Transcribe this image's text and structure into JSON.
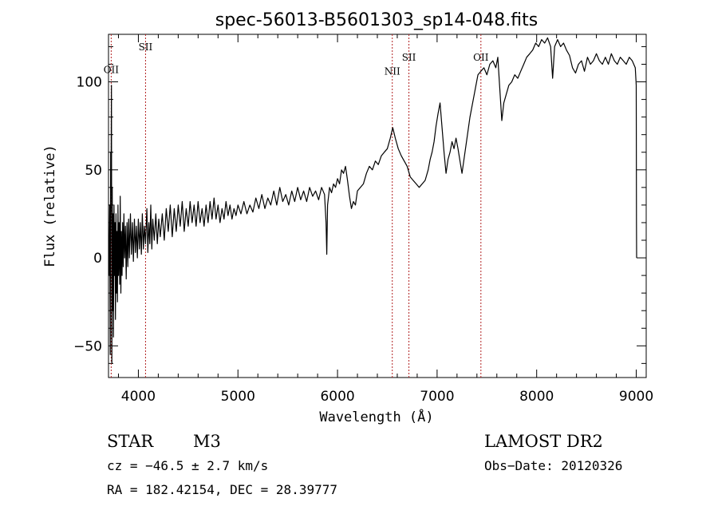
{
  "chart_data": {
    "type": "line",
    "title": "spec-56013-B5601303_sp14-048.fits",
    "xlabel": "Wavelength (Å)",
    "ylabel": "Flux (relative)",
    "xlim": [
      3700,
      9100
    ],
    "ylim": [
      -68,
      127
    ],
    "x_ticks": [
      4000,
      5000,
      6000,
      7000,
      8000,
      9000
    ],
    "y_ticks": [
      -50,
      0,
      50,
      100
    ],
    "grid": false,
    "line_color": "#000000",
    "marker_color": "#b22222",
    "lines": [
      {
        "label": "OII",
        "x": 3727,
        "label_y": 105
      },
      {
        "label": "SII",
        "x": 4072,
        "label_y": 118
      },
      {
        "label": "NII",
        "x": 6550,
        "label_y": 104
      },
      {
        "label": "SII",
        "x": 6717,
        "label_y": 112
      },
      {
        "label": "OII",
        "x": 7440,
        "label_y": 112
      }
    ],
    "series": [
      {
        "values": [
          [
            3705,
            -10
          ],
          [
            3712,
            30
          ],
          [
            3718,
            -55
          ],
          [
            3722,
            60
          ],
          [
            3726,
            40
          ],
          [
            3730,
            98
          ],
          [
            3734,
            -60
          ],
          [
            3738,
            40
          ],
          [
            3742,
            -30
          ],
          [
            3746,
            25
          ],
          [
            3750,
            -45
          ],
          [
            3755,
            30
          ],
          [
            3760,
            -10
          ],
          [
            3765,
            20
          ],
          [
            3770,
            -35
          ],
          [
            3775,
            25
          ],
          [
            3780,
            -20
          ],
          [
            3785,
            15
          ],
          [
            3790,
            -25
          ],
          [
            3795,
            30
          ],
          [
            3800,
            -10
          ],
          [
            3806,
            20
          ],
          [
            3812,
            -15
          ],
          [
            3818,
            35
          ],
          [
            3824,
            -20
          ],
          [
            3830,
            15
          ],
          [
            3836,
            -10
          ],
          [
            3842,
            20
          ],
          [
            3848,
            -5
          ],
          [
            3855,
            25
          ],
          [
            3862,
            0
          ],
          [
            3870,
            18
          ],
          [
            3878,
            -12
          ],
          [
            3886,
            20
          ],
          [
            3894,
            -5
          ],
          [
            3902,
            22
          ],
          [
            3910,
            0
          ],
          [
            3920,
            25
          ],
          [
            3930,
            2
          ],
          [
            3940,
            20
          ],
          [
            3950,
            -2
          ],
          [
            3960,
            22
          ],
          [
            3970,
            3
          ],
          [
            3980,
            18
          ],
          [
            3990,
            0
          ],
          [
            4000,
            22
          ],
          [
            4010,
            5
          ],
          [
            4020,
            20
          ],
          [
            4030,
            2
          ],
          [
            4040,
            25
          ],
          [
            4050,
            5
          ],
          [
            4060,
            18
          ],
          [
            4072,
            8
          ],
          [
            4085,
            28
          ],
          [
            4095,
            3
          ],
          [
            4105,
            20
          ],
          [
            4115,
            8
          ],
          [
            4125,
            30
          ],
          [
            4135,
            5
          ],
          [
            4145,
            22
          ],
          [
            4160,
            10
          ],
          [
            4175,
            25
          ],
          [
            4190,
            8
          ],
          [
            4205,
            22
          ],
          [
            4220,
            12
          ],
          [
            4240,
            25
          ],
          [
            4260,
            10
          ],
          [
            4280,
            28
          ],
          [
            4300,
            15
          ],
          [
            4320,
            30
          ],
          [
            4340,
            12
          ],
          [
            4360,
            28
          ],
          [
            4380,
            15
          ],
          [
            4400,
            30
          ],
          [
            4420,
            18
          ],
          [
            4440,
            32
          ],
          [
            4460,
            15
          ],
          [
            4480,
            28
          ],
          [
            4500,
            18
          ],
          [
            4520,
            32
          ],
          [
            4540,
            20
          ],
          [
            4560,
            30
          ],
          [
            4580,
            18
          ],
          [
            4600,
            32
          ],
          [
            4620,
            20
          ],
          [
            4640,
            28
          ],
          [
            4660,
            18
          ],
          [
            4680,
            30
          ],
          [
            4700,
            20
          ],
          [
            4720,
            32
          ],
          [
            4740,
            22
          ],
          [
            4760,
            34
          ],
          [
            4780,
            22
          ],
          [
            4800,
            30
          ],
          [
            4820,
            20
          ],
          [
            4840,
            28
          ],
          [
            4860,
            22
          ],
          [
            4880,
            32
          ],
          [
            4900,
            24
          ],
          [
            4920,
            30
          ],
          [
            4940,
            22
          ],
          [
            4960,
            28
          ],
          [
            4980,
            24
          ],
          [
            5000,
            30
          ],
          [
            5030,
            25
          ],
          [
            5060,
            32
          ],
          [
            5090,
            25
          ],
          [
            5120,
            30
          ],
          [
            5150,
            26
          ],
          [
            5180,
            34
          ],
          [
            5210,
            28
          ],
          [
            5240,
            36
          ],
          [
            5270,
            28
          ],
          [
            5300,
            34
          ],
          [
            5330,
            30
          ],
          [
            5360,
            38
          ],
          [
            5390,
            30
          ],
          [
            5420,
            40
          ],
          [
            5450,
            32
          ],
          [
            5480,
            36
          ],
          [
            5510,
            30
          ],
          [
            5540,
            38
          ],
          [
            5570,
            32
          ],
          [
            5600,
            40
          ],
          [
            5630,
            33
          ],
          [
            5660,
            38
          ],
          [
            5690,
            32
          ],
          [
            5720,
            40
          ],
          [
            5750,
            35
          ],
          [
            5780,
            38
          ],
          [
            5810,
            33
          ],
          [
            5840,
            40
          ],
          [
            5870,
            36
          ],
          [
            5885,
            20
          ],
          [
            5892,
            2
          ],
          [
            5900,
            30
          ],
          [
            5920,
            40
          ],
          [
            5940,
            37
          ],
          [
            5960,
            42
          ],
          [
            5980,
            40
          ],
          [
            6000,
            45
          ],
          [
            6020,
            42
          ],
          [
            6040,
            50
          ],
          [
            6060,
            48
          ],
          [
            6080,
            52
          ],
          [
            6100,
            44
          ],
          [
            6120,
            35
          ],
          [
            6140,
            28
          ],
          [
            6160,
            32
          ],
          [
            6180,
            30
          ],
          [
            6200,
            38
          ],
          [
            6230,
            40
          ],
          [
            6260,
            42
          ],
          [
            6290,
            48
          ],
          [
            6320,
            52
          ],
          [
            6350,
            50
          ],
          [
            6380,
            55
          ],
          [
            6410,
            53
          ],
          [
            6440,
            58
          ],
          [
            6470,
            60
          ],
          [
            6500,
            62
          ],
          [
            6530,
            68
          ],
          [
            6555,
            74
          ],
          [
            6580,
            68
          ],
          [
            6610,
            62
          ],
          [
            6640,
            58
          ],
          [
            6670,
            55
          ],
          [
            6700,
            52
          ],
          [
            6730,
            46
          ],
          [
            6760,
            44
          ],
          [
            6790,
            42
          ],
          [
            6820,
            40
          ],
          [
            6850,
            42
          ],
          [
            6880,
            44
          ],
          [
            6910,
            50
          ],
          [
            6930,
            56
          ],
          [
            6950,
            60
          ],
          [
            6970,
            66
          ],
          [
            6990,
            75
          ],
          [
            7010,
            82
          ],
          [
            7030,
            88
          ],
          [
            7050,
            74
          ],
          [
            7070,
            60
          ],
          [
            7090,
            48
          ],
          [
            7110,
            56
          ],
          [
            7130,
            60
          ],
          [
            7150,
            66
          ],
          [
            7170,
            62
          ],
          [
            7190,
            68
          ],
          [
            7210,
            62
          ],
          [
            7230,
            55
          ],
          [
            7250,
            48
          ],
          [
            7270,
            56
          ],
          [
            7290,
            64
          ],
          [
            7310,
            72
          ],
          [
            7330,
            80
          ],
          [
            7350,
            86
          ],
          [
            7370,
            92
          ],
          [
            7390,
            98
          ],
          [
            7410,
            104
          ],
          [
            7440,
            106
          ],
          [
            7470,
            108
          ],
          [
            7500,
            104
          ],
          [
            7530,
            110
          ],
          [
            7560,
            112
          ],
          [
            7590,
            108
          ],
          [
            7610,
            114
          ],
          [
            7630,
            96
          ],
          [
            7650,
            78
          ],
          [
            7670,
            88
          ],
          [
            7690,
            92
          ],
          [
            7720,
            98
          ],
          [
            7750,
            100
          ],
          [
            7780,
            104
          ],
          [
            7810,
            102
          ],
          [
            7840,
            106
          ],
          [
            7870,
            110
          ],
          [
            7900,
            114
          ],
          [
            7930,
            116
          ],
          [
            7960,
            118
          ],
          [
            7990,
            122
          ],
          [
            8020,
            120
          ],
          [
            8050,
            124
          ],
          [
            8080,
            122
          ],
          [
            8110,
            125
          ],
          [
            8140,
            120
          ],
          [
            8160,
            102
          ],
          [
            8180,
            120
          ],
          [
            8210,
            124
          ],
          [
            8240,
            120
          ],
          [
            8270,
            122
          ],
          [
            8300,
            118
          ],
          [
            8330,
            115
          ],
          [
            8360,
            108
          ],
          [
            8390,
            105
          ],
          [
            8420,
            110
          ],
          [
            8450,
            112
          ],
          [
            8480,
            106
          ],
          [
            8510,
            114
          ],
          [
            8540,
            110
          ],
          [
            8570,
            112
          ],
          [
            8600,
            116
          ],
          [
            8630,
            112
          ],
          [
            8660,
            110
          ],
          [
            8690,
            114
          ],
          [
            8720,
            110
          ],
          [
            8750,
            116
          ],
          [
            8780,
            112
          ],
          [
            8810,
            110
          ],
          [
            8840,
            114
          ],
          [
            8870,
            112
          ],
          [
            8900,
            110
          ],
          [
            8930,
            114
          ],
          [
            8960,
            112
          ],
          [
            8990,
            108
          ],
          [
            9000,
            98
          ],
          [
            9002,
            20
          ],
          [
            9004,
            0
          ]
        ]
      }
    ]
  },
  "footer": {
    "object_class": "STAR",
    "subclass": "M3",
    "survey": "LAMOST DR2",
    "cz": "cz = −46.5 ± 2.7 km/s",
    "obs_date": "Obs−Date: 20120326",
    "coords": "RA = 182.42154, DEC =  28.39777"
  }
}
